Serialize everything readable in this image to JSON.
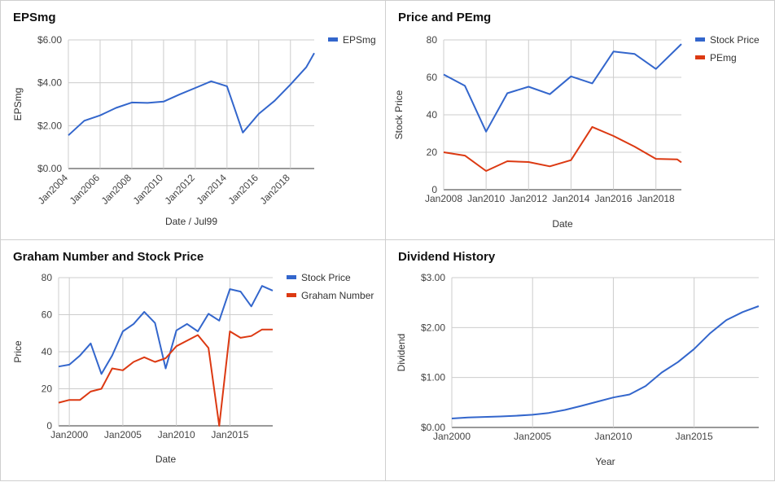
{
  "chart_data": [
    {
      "id": "epsmg",
      "type": "line",
      "title": "EPSmg",
      "xlabel": "Date / Jul99",
      "ylabel": "EPSmg",
      "x_type": "date",
      "xlim": [
        2004.0,
        2019.5
      ],
      "ylim": [
        0,
        6
      ],
      "y_ticks": [
        "$0.00",
        "$2.00",
        "$4.00",
        "$6.00"
      ],
      "y_tick_values": [
        0,
        2,
        4,
        6
      ],
      "x_ticks": [
        "Jan2004",
        "Jan2006",
        "Jan2008",
        "Jan2010",
        "Jan2012",
        "Jan2014",
        "Jan2016",
        "Jan2018"
      ],
      "x_tick_values": [
        2004,
        2006,
        2008,
        2010,
        2012,
        2014,
        2016,
        2018
      ],
      "grid": true,
      "legend_position": "right",
      "series": [
        {
          "name": "EPSmg",
          "color": "#3366cc",
          "x": [
            2004.0,
            2005.0,
            2006.0,
            2007.0,
            2008.0,
            2009.0,
            2010.0,
            2011.0,
            2012.0,
            2013.0,
            2014.0,
            2015.0,
            2016.0,
            2017.0,
            2018.0,
            2019.0,
            2019.5
          ],
          "values": [
            1.55,
            2.23,
            2.48,
            2.83,
            3.08,
            3.06,
            3.12,
            3.45,
            3.76,
            4.07,
            3.84,
            1.68,
            2.55,
            3.16,
            3.92,
            4.73,
            5.38
          ]
        }
      ]
    },
    {
      "id": "price-pe",
      "type": "line",
      "title": "Price and PEmg",
      "xlabel": "Date",
      "ylabel": "Stock Price",
      "x_type": "date",
      "xlim": [
        2008.0,
        2019.2
      ],
      "ylim": [
        0,
        80
      ],
      "y_ticks": [
        "0",
        "20",
        "40",
        "60",
        "80"
      ],
      "y_tick_values": [
        0,
        20,
        40,
        60,
        80
      ],
      "x_ticks": [
        "Jan2008",
        "Jan2010",
        "Jan2012",
        "Jan2014",
        "Jan2016",
        "Jan2018"
      ],
      "x_tick_values": [
        2008,
        2010,
        2012,
        2014,
        2016,
        2018
      ],
      "grid": true,
      "legend_position": "right",
      "series": [
        {
          "name": "Stock Price",
          "color": "#3366cc",
          "x": [
            2008.0,
            2009.0,
            2010.0,
            2011.0,
            2012.0,
            2013.0,
            2014.0,
            2015.0,
            2016.0,
            2017.0,
            2018.0,
            2019.2
          ],
          "values": [
            61.5,
            55.5,
            31.0,
            51.5,
            55.0,
            51.0,
            60.5,
            56.8,
            73.8,
            72.5,
            64.5,
            77.8
          ]
        },
        {
          "name": "PEmg",
          "color": "#dc3912",
          "x": [
            2008.0,
            2009.0,
            2010.0,
            2011.0,
            2012.0,
            2013.0,
            2014.0,
            2015.0,
            2016.0,
            2017.0,
            2018.0,
            2019.0,
            2019.2
          ],
          "values": [
            20.0,
            18.2,
            10.0,
            15.2,
            14.8,
            12.5,
            15.8,
            33.5,
            28.7,
            23.0,
            16.5,
            16.2,
            14.6
          ]
        }
      ]
    },
    {
      "id": "graham",
      "type": "line",
      "title": "Graham Number and Stock Price",
      "xlabel": "Date",
      "ylabel": "Price",
      "x_type": "date",
      "xlim": [
        1999.0,
        2019.0
      ],
      "ylim": [
        0,
        80
      ],
      "y_ticks": [
        "0",
        "20",
        "40",
        "60",
        "80"
      ],
      "y_tick_values": [
        0,
        20,
        40,
        60,
        80
      ],
      "x_ticks": [
        "Jan2000",
        "Jan2005",
        "Jan2010",
        "Jan2015"
      ],
      "x_tick_values": [
        2000,
        2005,
        2010,
        2015
      ],
      "grid": true,
      "legend_position": "right",
      "series": [
        {
          "name": "Stock Price",
          "color": "#3366cc",
          "x": [
            1999.0,
            2000.0,
            2001.0,
            2002.0,
            2003.0,
            2004.0,
            2005.0,
            2006.0,
            2007.0,
            2008.0,
            2009.0,
            2010.0,
            2011.0,
            2012.0,
            2013.0,
            2014.0,
            2015.0,
            2016.0,
            2017.0,
            2018.0,
            2019.0
          ],
          "values": [
            32.0,
            33.0,
            38.0,
            44.5,
            28.0,
            38.0,
            51.0,
            55.0,
            61.5,
            55.5,
            31.0,
            51.5,
            55.0,
            51.0,
            60.5,
            56.8,
            73.8,
            72.5,
            64.5,
            75.5,
            73.0
          ]
        },
        {
          "name": "Graham Number",
          "color": "#dc3912",
          "x": [
            1999.0,
            2000.0,
            2001.0,
            2002.0,
            2003.0,
            2004.0,
            2005.0,
            2006.0,
            2007.0,
            2008.0,
            2009.0,
            2010.0,
            2011.0,
            2012.0,
            2013.0,
            2014.0,
            2015.0,
            2016.0,
            2017.0,
            2018.0,
            2019.0
          ],
          "values": [
            12.5,
            14.0,
            14.0,
            18.5,
            20.0,
            31.0,
            30.0,
            34.5,
            37.0,
            34.5,
            36.5,
            43.0,
            46.0,
            49.0,
            42.0,
            0.0,
            51.0,
            47.5,
            48.5,
            52.0,
            52.0
          ]
        }
      ]
    },
    {
      "id": "dividend",
      "type": "line",
      "title": "Dividend History",
      "xlabel": "Year",
      "ylabel": "Dividend",
      "xlim": [
        2000,
        2019
      ],
      "ylim": [
        0,
        3
      ],
      "y_ticks": [
        "$0.00",
        "$1.00",
        "$2.00",
        "$3.00"
      ],
      "y_tick_values": [
        0,
        1,
        2,
        3
      ],
      "x_ticks": [
        "Jan2000",
        "Jan2005",
        "Jan2010",
        "Jan2015"
      ],
      "x_tick_values": [
        2000,
        2005,
        2010,
        2015
      ],
      "grid": true,
      "legend_position": "none",
      "series": [
        {
          "name": "",
          "color": "#3366cc",
          "x": [
            2000,
            2001,
            2002,
            2003,
            2004,
            2005,
            2006,
            2007,
            2008,
            2009,
            2010,
            2011,
            2012,
            2013,
            2014,
            2015,
            2016,
            2017,
            2018,
            2019
          ],
          "values": [
            0.18,
            0.2,
            0.21,
            0.22,
            0.235,
            0.255,
            0.29,
            0.35,
            0.43,
            0.515,
            0.6,
            0.66,
            0.83,
            1.1,
            1.31,
            1.57,
            1.89,
            2.15,
            2.31,
            2.43
          ]
        }
      ]
    }
  ]
}
